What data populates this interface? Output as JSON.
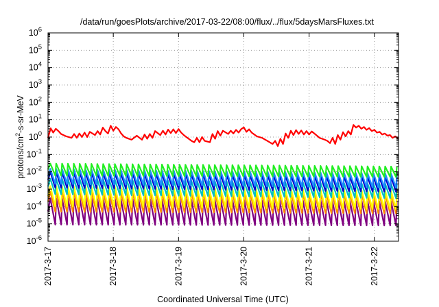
{
  "chart_data": {
    "type": "line",
    "title": "/data/run/goesPlots/archive/2017-03-22/08:00/flux/../flux/5daysMarsFluxes.txt",
    "xlabel": "Coordinated Universal Time (UTC)",
    "ylabel": {
      "base": "protons/cm",
      "sup": "2",
      "rest": "-s-sr-MeV"
    },
    "xlim": [
      0,
      5.37
    ],
    "x_unit": "days since 2017-3-17 00:00",
    "x_ticks": [
      {
        "x": 0,
        "label": "2017-3-17"
      },
      {
        "x": 1,
        "label": "2017-3-18"
      },
      {
        "x": 2,
        "label": "2017-3-19"
      },
      {
        "x": 3,
        "label": "2017-3-20"
      },
      {
        "x": 4,
        "label": "2017-3-21"
      },
      {
        "x": 5,
        "label": "2017-3-22"
      }
    ],
    "yscale": "log",
    "ylim": [
      1e-06,
      1000000.0
    ],
    "y_ticks": [
      {
        "value": -6,
        "base": "10",
        "exp": "-6"
      },
      {
        "value": -5,
        "base": "10",
        "exp": "-5"
      },
      {
        "value": -4,
        "base": "10",
        "exp": "-4"
      },
      {
        "value": -3,
        "base": "10",
        "exp": "-3"
      },
      {
        "value": -2,
        "base": "10",
        "exp": "-2"
      },
      {
        "value": -1,
        "base": "10",
        "exp": "-1"
      },
      {
        "value": 0,
        "base": "10",
        "exp": "0"
      },
      {
        "value": 1,
        "base": "10",
        "exp": "1"
      },
      {
        "value": 2,
        "base": "10",
        "exp": "2"
      },
      {
        "value": 3,
        "base": "10",
        "exp": "3"
      },
      {
        "value": 4,
        "base": "10",
        "exp": "4"
      },
      {
        "value": 5,
        "base": "10",
        "exp": "5"
      },
      {
        "value": 6,
        "base": "10",
        "exp": "6"
      }
    ],
    "grid": "dotted",
    "series": [
      {
        "color": "#ff0000",
        "x": [
          0.0,
          0.04,
          0.08,
          0.12,
          0.16,
          0.2,
          0.28,
          0.36,
          0.4,
          0.44,
          0.48,
          0.52,
          0.56,
          0.6,
          0.64,
          0.72,
          0.76,
          0.8,
          0.84,
          0.88,
          0.92,
          0.96,
          1.0,
          1.04,
          1.08,
          1.12,
          1.16,
          1.2,
          1.28,
          1.36,
          1.44,
          1.48,
          1.52,
          1.56,
          1.6,
          1.64,
          1.72,
          1.76,
          1.8,
          1.84,
          1.88,
          1.92,
          1.96,
          2.0,
          2.04,
          2.08,
          2.12,
          2.2,
          2.24,
          2.28,
          2.32,
          2.36,
          2.4,
          2.48,
          2.52,
          2.56,
          2.6,
          2.64,
          2.68,
          2.76,
          2.8,
          2.84,
          2.88,
          2.92,
          2.96,
          3.0,
          3.04,
          3.08,
          3.12,
          3.2,
          3.28,
          3.36,
          3.44,
          3.48,
          3.52,
          3.56,
          3.6,
          3.64,
          3.68,
          3.72,
          3.76,
          3.8,
          3.84,
          3.88,
          3.92,
          3.96,
          4.0,
          4.04,
          4.08,
          4.12,
          4.16,
          4.2,
          4.24,
          4.28,
          4.32,
          4.36,
          4.4,
          4.44,
          4.48,
          4.52,
          4.56,
          4.6,
          4.64,
          4.68,
          4.72,
          4.76,
          4.8,
          4.84,
          4.88,
          4.92,
          4.96,
          5.0,
          5.04,
          5.08,
          5.12,
          5.16,
          5.2,
          5.24,
          5.28,
          5.32,
          5.37
        ],
        "y": [
          0.9,
          3.2,
          1.8,
          3.0,
          2.2,
          1.5,
          1.1,
          0.9,
          1.5,
          0.9,
          1.6,
          1.0,
          1.8,
          1.0,
          2.0,
          1.3,
          2.2,
          1.4,
          3.5,
          2.2,
          1.6,
          4.5,
          2.3,
          3.8,
          2.8,
          1.6,
          1.1,
          0.9,
          0.7,
          1.2,
          0.7,
          1.4,
          0.8,
          1.5,
          0.9,
          2.2,
          1.3,
          2.3,
          1.4,
          2.7,
          1.7,
          2.8,
          1.7,
          2.9,
          1.8,
          1.3,
          1.0,
          0.6,
          0.5,
          0.9,
          0.5,
          1.0,
          0.6,
          0.5,
          1.5,
          0.8,
          2.2,
          1.2,
          2.3,
          1.5,
          2.3,
          1.6,
          2.6,
          1.8,
          2.9,
          3.6,
          2.0,
          2.8,
          1.8,
          1.1,
          0.9,
          0.6,
          0.4,
          0.6,
          0.3,
          0.8,
          0.4,
          1.6,
          0.9,
          2.3,
          1.3,
          2.5,
          1.5,
          2.4,
          1.4,
          2.2,
          1.4,
          2.1,
          1.6,
          1.2,
          0.9,
          0.8,
          0.7,
          0.6,
          0.45,
          0.9,
          0.4,
          1.3,
          0.7,
          1.9,
          1.1,
          2.2,
          1.4,
          5.0,
          3.5,
          4.5,
          3.0,
          3.8,
          2.6,
          3.3,
          2.2,
          2.6,
          1.8,
          2.0,
          1.4,
          1.6,
          1.2,
          1.3,
          0.9,
          1.1,
          0.8
        ]
      },
      {
        "color": "#22ee22",
        "peaks": [
          0.03,
          0.02
        ],
        "troughs": [
          0.006,
          0.005
        ]
      },
      {
        "color": "#1e90ff",
        "peaks": [
          0.015,
          0.008
        ],
        "troughs": [
          0.002,
          0.0012
        ]
      },
      {
        "color": "#0000cc",
        "peaks": [
          0.01,
          0.005
        ],
        "troughs": [
          0.0012,
          0.0007
        ]
      },
      {
        "color": "#00c0c0",
        "peaks": [
          0.004,
          0.002
        ],
        "troughs": [
          0.0005,
          0.0003
        ]
      },
      {
        "color": "#ffff00",
        "peaks": [
          0.0015,
          0.0008
        ],
        "troughs": [
          0.0001,
          7e-05
        ]
      },
      {
        "color": "#ff8c00",
        "peaks": [
          0.0007,
          0.0005
        ],
        "troughs": [
          5e-05,
          4e-05
        ]
      },
      {
        "color": "#800080",
        "peaks": [
          0.0003,
          0.0002
        ],
        "troughs": [
          9e-06,
          8e-06
        ]
      }
    ]
  }
}
